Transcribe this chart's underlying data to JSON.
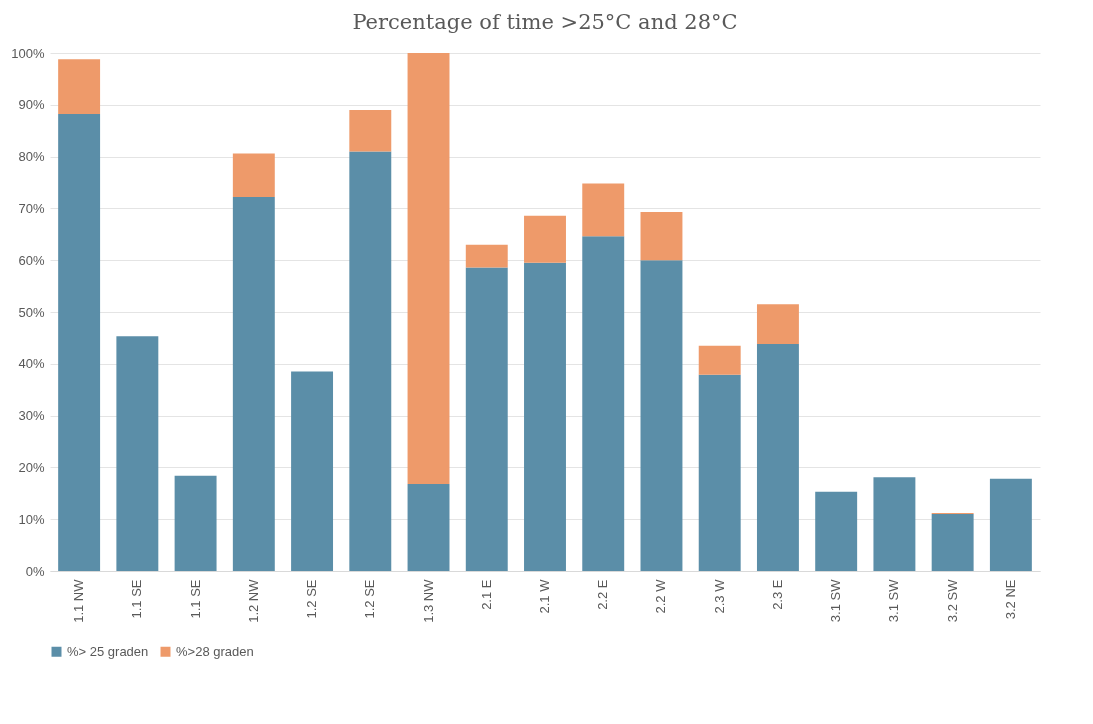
{
  "chart_data": {
    "type": "bar",
    "title": "Percentage of time >25°C and 28°C",
    "stacked": true,
    "categories": [
      "1.1 NW",
      "1.1 SE",
      "1.1 SE",
      "1.2 NW",
      "1.2 SE",
      "1.2 SE",
      "1.3 NW",
      "2.1 E",
      "2.1 W",
      "2.2 E",
      "2.2 W",
      "2.3 W",
      "2.3 E",
      "3.1 SW",
      "3.1 SW",
      "3.2 SW",
      "3.2 NE"
    ],
    "series": [
      {
        "name": "%> 25 graden",
        "color": "#5b8ea8",
        "values": [
          88.2,
          45.3,
          18.4,
          72.2,
          38.5,
          81.0,
          16.8,
          58.6,
          59.5,
          64.6,
          60.0,
          37.9,
          43.8,
          15.3,
          18.1,
          11.0,
          17.8
        ]
      },
      {
        "name": "%>28 graden",
        "color": "#ee9a6a",
        "values": [
          10.6,
          0,
          0,
          8.4,
          0,
          8.0,
          83.2,
          4.4,
          9.1,
          10.2,
          9.3,
          5.6,
          7.7,
          0,
          0,
          0.2,
          0
        ]
      }
    ],
    "ylim": [
      0,
      100
    ],
    "yticks": [
      {
        "value": 0,
        "label": "0%"
      },
      {
        "value": 10,
        "label": "10%"
      },
      {
        "value": 20,
        "label": "20%"
      },
      {
        "value": 30,
        "label": "30%"
      },
      {
        "value": 40,
        "label": "40%"
      },
      {
        "value": 50,
        "label": "50%"
      },
      {
        "value": 60,
        "label": "60%"
      },
      {
        "value": 70,
        "label": "70%"
      },
      {
        "value": 80,
        "label": "80%"
      },
      {
        "value": 90,
        "label": "90%"
      },
      {
        "value": 100,
        "label": "100%"
      }
    ],
    "grid": "y",
    "legend": "bottom"
  }
}
